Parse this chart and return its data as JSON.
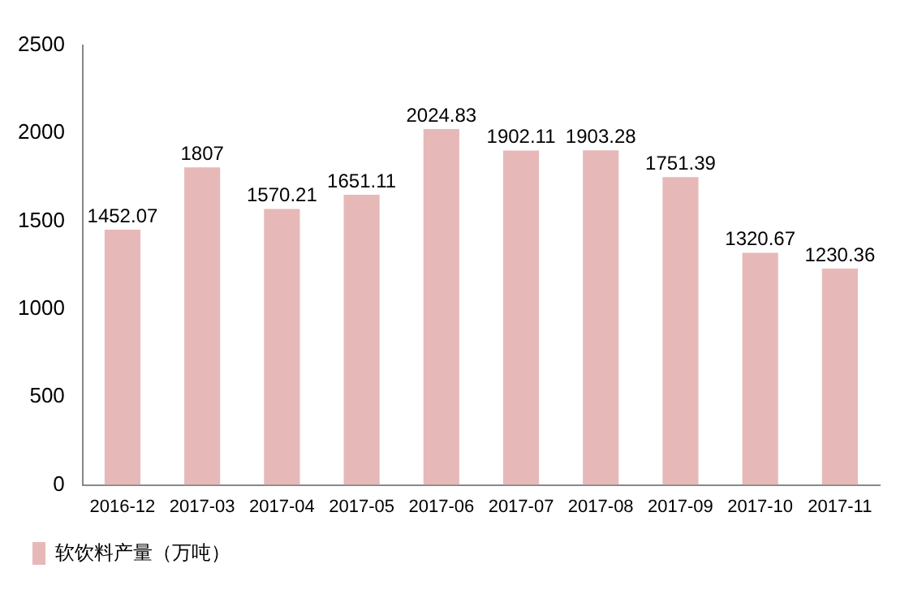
{
  "chart_data": {
    "type": "bar",
    "categories": [
      "2016-12",
      "2017-03",
      "2017-04",
      "2017-05",
      "2017-06",
      "2017-07",
      "2017-08",
      "2017-09",
      "2017-10",
      "2017-11"
    ],
    "series": [
      {
        "name": "软饮料产量（万吨）",
        "color": "#e6b9b8",
        "values": [
          1452.07,
          1807,
          1570.21,
          1651.11,
          2024.83,
          1902.11,
          1903.28,
          1751.39,
          1320.67,
          1230.36
        ]
      }
    ],
    "ylim": [
      0,
      2500
    ],
    "yticks": [
      0,
      500,
      1000,
      1500,
      2000,
      2500
    ],
    "grid": false,
    "legend": "bottom left",
    "data_labels": true
  }
}
